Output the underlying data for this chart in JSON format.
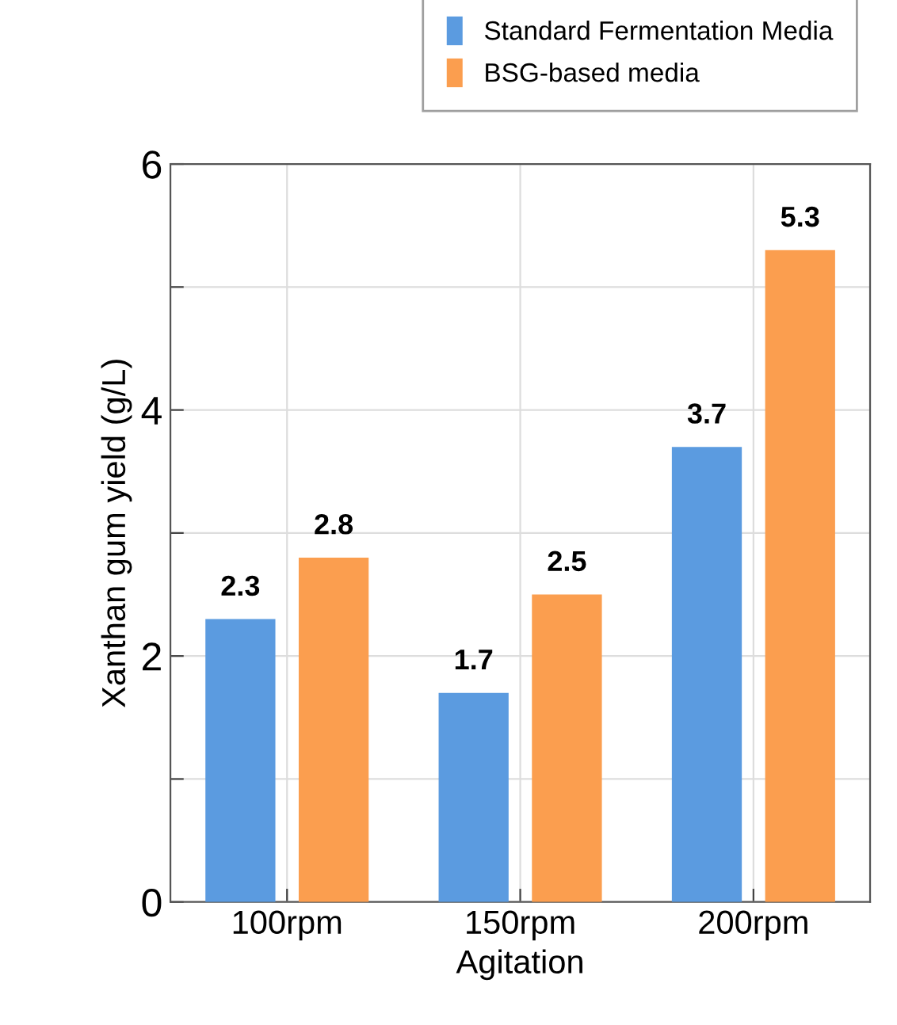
{
  "chart_data": {
    "type": "bar",
    "xlabel": "Agitation",
    "ylabel": "Xanthan gum yield (g/L)",
    "categories": [
      "100rpm",
      "150rpm",
      "200rpm"
    ],
    "series": [
      {
        "name": "Standard Fermentation Media",
        "color": "#5b9be0",
        "values": [
          2.3,
          1.7,
          3.7
        ]
      },
      {
        "name": "BSG-based media",
        "color": "#fb9e4f",
        "values": [
          2.8,
          2.5,
          5.3
        ]
      }
    ],
    "ylim": [
      0,
      6
    ],
    "yticks": [
      0,
      {
        "value": 1,
        "label": null
      },
      2,
      {
        "value": 3,
        "label": null
      },
      4,
      {
        "value": 5,
        "label": null
      },
      6
    ],
    "grid": true,
    "legend": "top right",
    "data_labels": true
  }
}
